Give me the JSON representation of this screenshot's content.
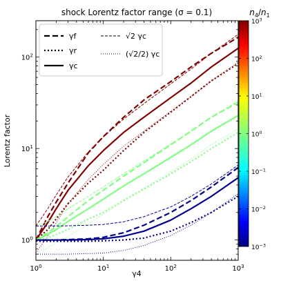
{
  "chart_data": {
    "type": "line",
    "title": "shock Lorentz factor range (σ = 0.1)",
    "xlabel": "γ4",
    "ylabel": "Lorentz factor",
    "xscale": "log",
    "yscale": "log",
    "xlim": [
      1,
      1000
    ],
    "ylim": [
      0.6,
      250
    ],
    "x_ticks": [
      "10^0",
      "10^1",
      "10^2",
      "10^3"
    ],
    "y_ticks": [
      "10^0",
      "10^1",
      "10^2"
    ],
    "colorbar": {
      "label": "n4/n1",
      "scale": "log",
      "range": [
        0.001,
        1000
      ],
      "ticks": [
        "10^-3",
        "10^-2",
        "10^-1",
        "10^0",
        "10^1",
        "10^2",
        "10^3"
      ]
    },
    "legend": {
      "placement": "top-left",
      "entries": [
        {
          "label": "γf",
          "style": "dashed-thick"
        },
        {
          "label": "γr",
          "style": "dotted-thick"
        },
        {
          "label": "γc",
          "style": "solid-thick"
        },
        {
          "label": "√2 γc",
          "style": "dashed-thin"
        },
        {
          "label": "(√2/2) γc",
          "style": "dotted-thin"
        }
      ]
    },
    "x": [
      1,
      1.5,
      2,
      3,
      6,
      10,
      20,
      40,
      100,
      200,
      400,
      1000
    ],
    "series": [
      {
        "quantity": "γf",
        "color": "#7f0000",
        "style": "dashed-thick",
        "values": [
          1.0,
          1.8,
          2.6,
          4.2,
          9.0,
          13.5,
          22,
          34,
          54,
          78,
          110,
          165
        ]
      },
      {
        "quantity": "γc",
        "color": "#7f0000",
        "style": "solid-thick",
        "values": [
          1.0,
          1.55,
          2.2,
          3.5,
          6.5,
          9.5,
          15,
          22,
          36,
          52,
          78,
          125
        ]
      },
      {
        "quantity": "γr",
        "color": "#7f0000",
        "style": "dotted-thick",
        "values": [
          1.0,
          1.3,
          1.7,
          2.5,
          4.2,
          5.8,
          9.5,
          15,
          25,
          37,
          55,
          85
        ]
      },
      {
        "quantity": "√2 γc",
        "color": "#7f0000",
        "style": "dashed-thin",
        "values": [
          1.42,
          2.2,
          3.1,
          4.9,
          9.2,
          13.4,
          21,
          31,
          51,
          74,
          110,
          177
        ]
      },
      {
        "quantity": "(√2/2) γc",
        "color": "#7f0000",
        "style": "dotted-thin",
        "values": [
          0.72,
          1.1,
          1.55,
          2.5,
          4.6,
          6.7,
          10.6,
          15.5,
          25.5,
          37,
          55,
          88
        ]
      },
      {
        "quantity": "γf",
        "color": "#80ff80",
        "style": "dashed-thick",
        "values": [
          1.0,
          1.2,
          1.4,
          1.8,
          2.7,
          3.5,
          5.0,
          7.0,
          11.0,
          15.5,
          22,
          32
        ]
      },
      {
        "quantity": "γc",
        "color": "#80ff80",
        "style": "solid-thick",
        "values": [
          1.0,
          1.15,
          1.3,
          1.6,
          2.2,
          2.8,
          3.9,
          5.3,
          8.0,
          11.0,
          15.5,
          23
        ]
      },
      {
        "quantity": "γr",
        "color": "#80ff80",
        "style": "dotted-thick",
        "values": [
          1.0,
          1.05,
          1.15,
          1.3,
          1.7,
          2.0,
          2.7,
          3.6,
          5.3,
          7.2,
          10,
          15
        ]
      },
      {
        "quantity": "√2 γc",
        "color": "#80ff80",
        "style": "dashed-thin",
        "values": [
          1.42,
          1.6,
          1.8,
          2.2,
          3.0,
          3.8,
          5.3,
          7.3,
          11.2,
          15.5,
          22,
          33
        ]
      },
      {
        "quantity": "(√2/2) γc",
        "color": "#80ff80",
        "style": "dotted-thin",
        "values": [
          0.72,
          0.82,
          0.92,
          1.1,
          1.5,
          1.9,
          2.7,
          3.7,
          5.6,
          7.7,
          11,
          16.5
        ]
      },
      {
        "quantity": "γf",
        "color": "#00008b",
        "style": "dashed-thick",
        "values": [
          1.0,
          1.0,
          1.0,
          1.01,
          1.03,
          1.07,
          1.2,
          1.45,
          2.0,
          2.7,
          3.8,
          6.2
        ]
      },
      {
        "quantity": "γc",
        "color": "#00008b",
        "style": "solid-thick",
        "values": [
          1.0,
          1.0,
          1.0,
          1.0,
          1.01,
          1.03,
          1.1,
          1.25,
          1.65,
          2.2,
          3.0,
          4.8
        ]
      },
      {
        "quantity": "γr",
        "color": "#00008b",
        "style": "dotted-thick",
        "values": [
          0.97,
          0.97,
          0.97,
          0.97,
          0.97,
          0.98,
          1.0,
          1.05,
          1.25,
          1.55,
          2.0,
          3.0
        ]
      },
      {
        "quantity": "√2 γc",
        "color": "#00008b",
        "style": "dashed-thin",
        "values": [
          1.42,
          1.42,
          1.42,
          1.43,
          1.45,
          1.48,
          1.58,
          1.8,
          2.3,
          3.0,
          4.1,
          6.6
        ]
      },
      {
        "quantity": "(√2/2) γc",
        "color": "#00008b",
        "style": "dotted-thin",
        "values": [
          0.7,
          0.7,
          0.7,
          0.7,
          0.71,
          0.72,
          0.77,
          0.87,
          1.12,
          1.45,
          2.0,
          3.2
        ]
      }
    ]
  }
}
